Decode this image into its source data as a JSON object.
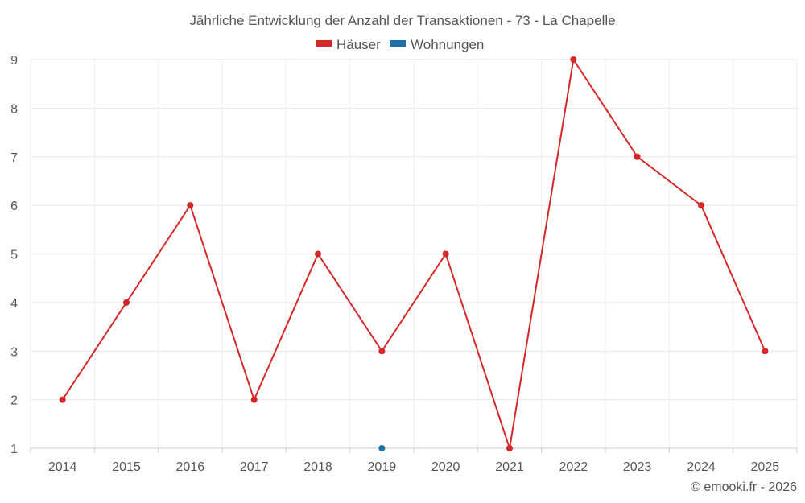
{
  "chart_data": {
    "type": "line",
    "title": "Jährliche Entwicklung der Anzahl der Transaktionen - 73 - La Chapelle",
    "categories": [
      "2014",
      "2015",
      "2016",
      "2017",
      "2018",
      "2019",
      "2020",
      "2021",
      "2022",
      "2023",
      "2024",
      "2025"
    ],
    "series": [
      {
        "name": "Häuser",
        "color": "#d62728",
        "values": [
          2,
          4,
          6,
          2,
          5,
          3,
          5,
          1,
          9,
          7,
          6,
          3
        ]
      },
      {
        "name": "Wohnungen",
        "color": "#1f6fa8",
        "values": [
          null,
          null,
          null,
          null,
          null,
          1,
          null,
          null,
          null,
          null,
          null,
          null
        ]
      }
    ],
    "ylim": [
      1,
      9
    ],
    "yticks": [
      "1",
      "2",
      "3",
      "4",
      "5",
      "6",
      "7",
      "8",
      "9"
    ],
    "xlabel": "",
    "ylabel": "",
    "grid": true,
    "legend": "top-center"
  },
  "credit": "© emooki.fr - 2026"
}
